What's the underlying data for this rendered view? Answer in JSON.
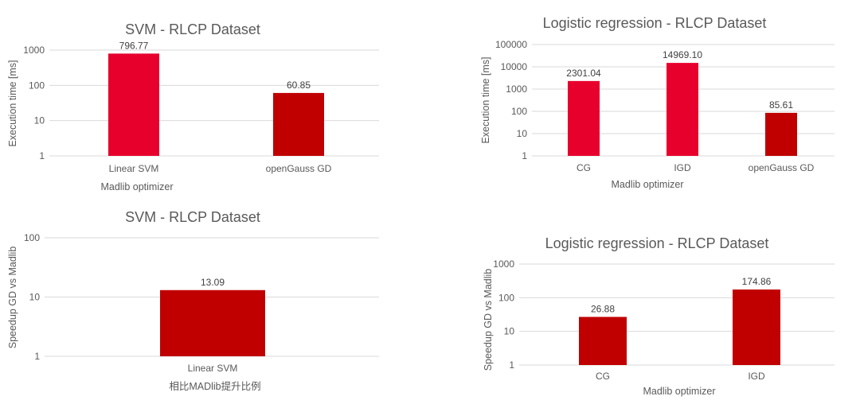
{
  "chart_data": [
    {
      "type": "bar",
      "title": "SVM - RLCP Dataset",
      "xlabel": "Madlib optimizer",
      "ylabel": "Execution time [ms]",
      "scale": "log",
      "ylim": [
        1,
        1000
      ],
      "yticks": [
        "1",
        "10",
        "100",
        "1000"
      ],
      "grid": true,
      "categories": [
        "Linear SVM",
        "openGauss GD"
      ],
      "values": [
        796.77,
        60.85
      ],
      "value_labels": [
        "796.77",
        "60.85"
      ],
      "colors": [
        "#e8002d",
        "#c00000"
      ]
    },
    {
      "type": "bar",
      "title": "Logistic regression - RLCP Dataset",
      "xlabel": "Madlib optimizer",
      "ylabel": "Execution time [ms]",
      "scale": "log",
      "ylim": [
        1,
        100000
      ],
      "yticks": [
        "1",
        "10",
        "100",
        "1000",
        "10000",
        "100000"
      ],
      "grid": true,
      "categories": [
        "CG",
        "IGD",
        "openGauss GD"
      ],
      "values": [
        2301.04,
        14969.1,
        85.61
      ],
      "value_labels": [
        "2301.04",
        "14969.10",
        "85.61"
      ],
      "colors": [
        "#e8002d",
        "#e8002d",
        "#c00000"
      ]
    },
    {
      "type": "bar",
      "title": "SVM - RLCP Dataset",
      "xlabel": "相比MADlib提升比例",
      "ylabel": "Speedup GD vs Madlib",
      "scale": "log",
      "ylim": [
        1,
        100
      ],
      "yticks": [
        "1",
        "10",
        "100"
      ],
      "grid": true,
      "categories": [
        "Linear SVM"
      ],
      "values": [
        13.09
      ],
      "value_labels": [
        "13.09"
      ],
      "colors": [
        "#c00000"
      ]
    },
    {
      "type": "bar",
      "title": "Logistic regression - RLCP Dataset",
      "xlabel": "Madlib optimizer",
      "ylabel": "Speedup GD vs Madlib",
      "scale": "log",
      "ylim": [
        1,
        1000
      ],
      "yticks": [
        "1",
        "10",
        "100",
        "1000"
      ],
      "grid": true,
      "categories": [
        "CG",
        "IGD"
      ],
      "values": [
        26.88,
        174.86
      ],
      "value_labels": [
        "26.88",
        "174.86"
      ],
      "colors": [
        "#c00000",
        "#c00000"
      ]
    }
  ]
}
